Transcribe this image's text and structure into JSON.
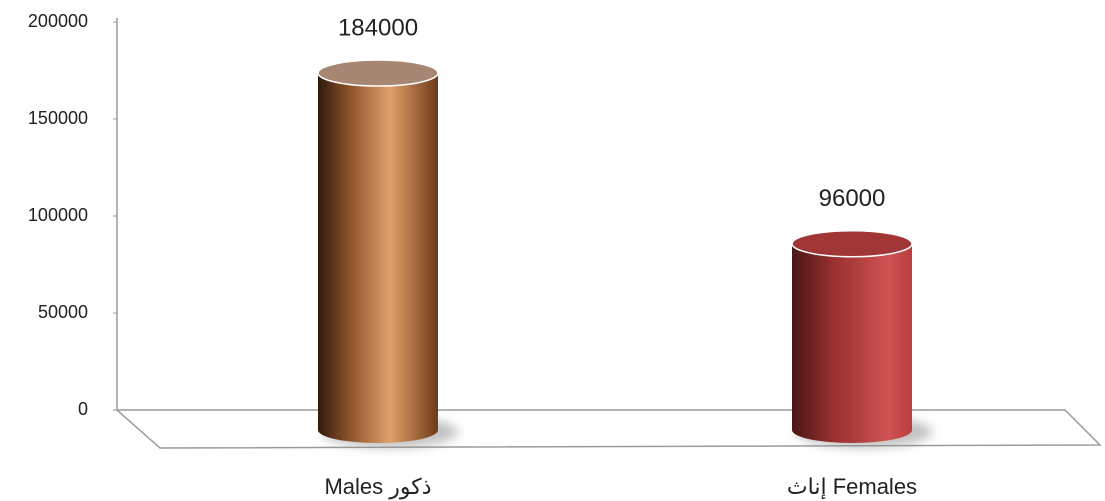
{
  "chart_data": {
    "type": "bar",
    "categories": [
      "Males  ذكور",
      "إناث Females"
    ],
    "values": [
      184000,
      96000
    ],
    "ylim": [
      0,
      200000
    ],
    "yticks": [
      0,
      50000,
      100000,
      150000,
      200000
    ],
    "grid": false
  }
}
